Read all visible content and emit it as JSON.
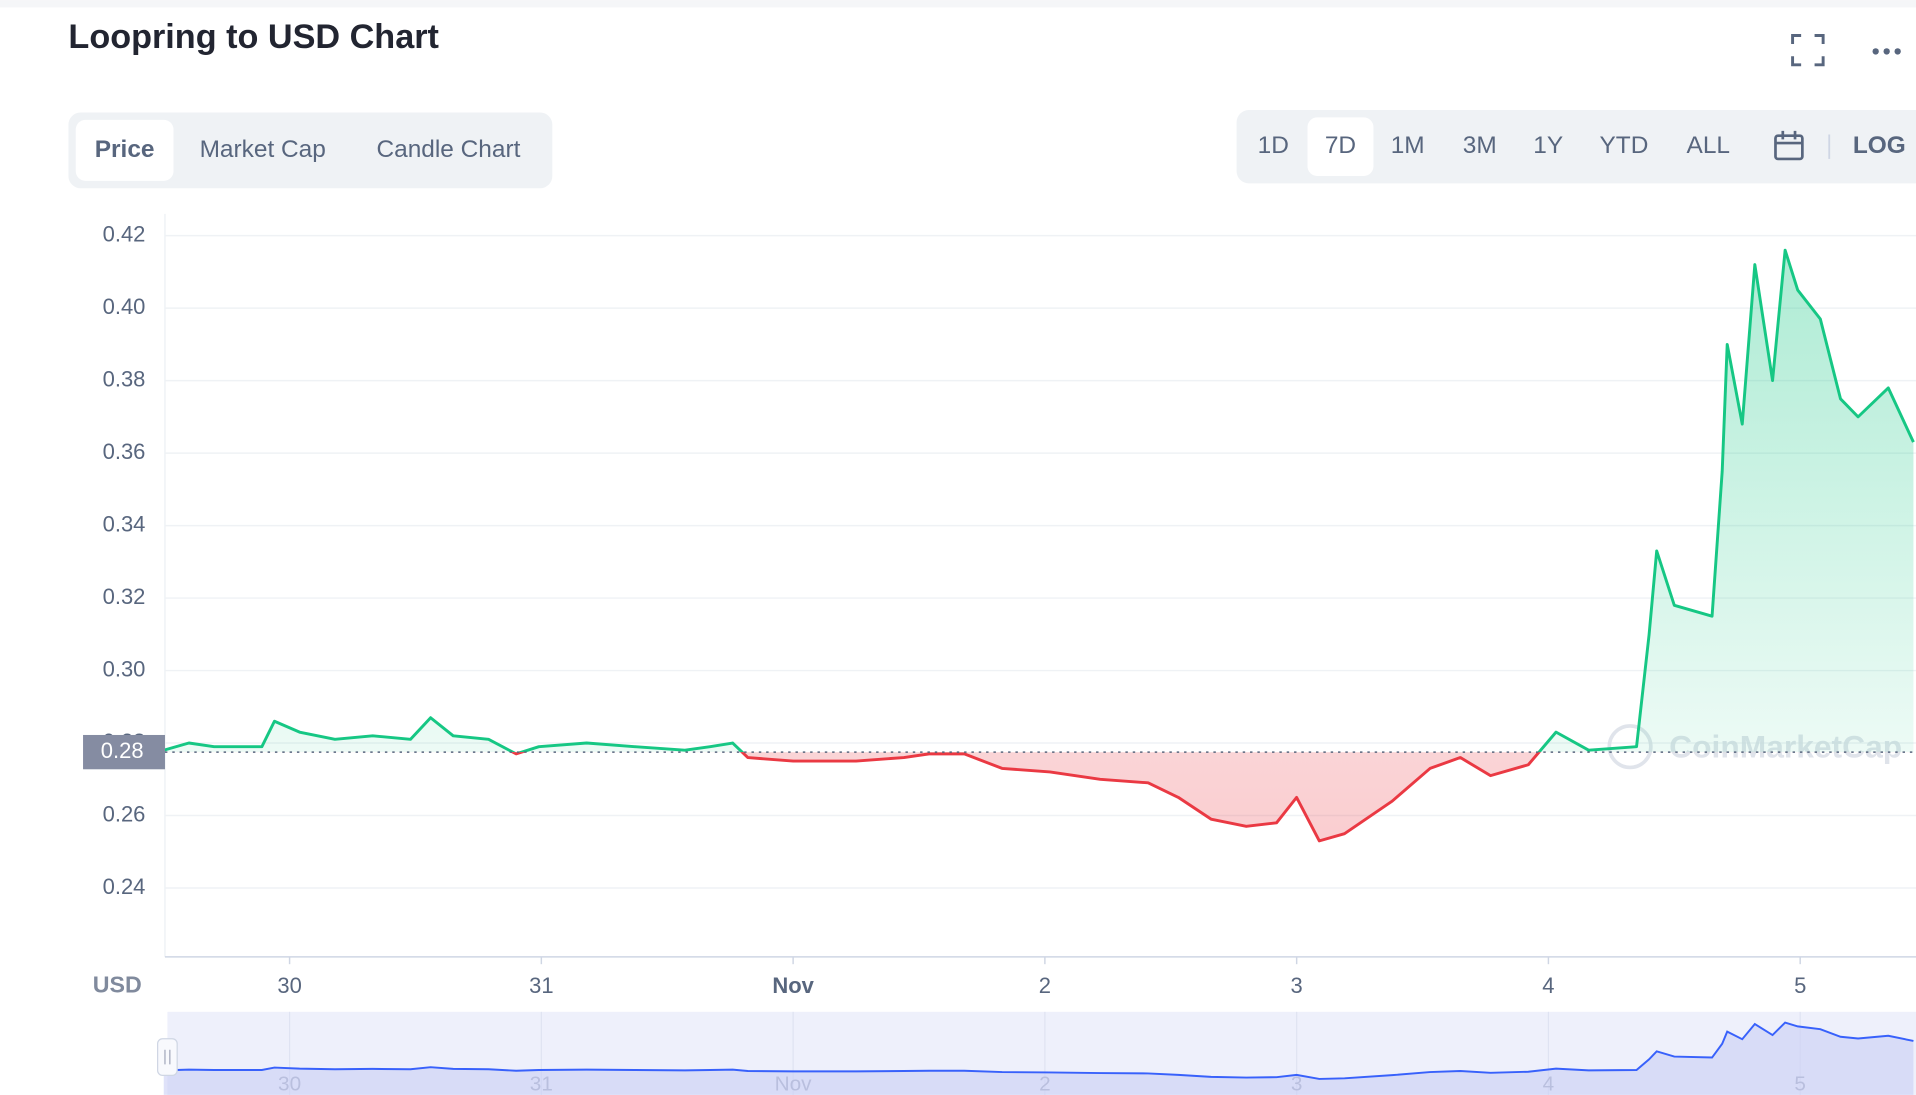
{
  "header": {
    "title": "Loopring to USD Chart"
  },
  "tabs": [
    "Price",
    "Market Cap",
    "Candle Chart"
  ],
  "active_tab": 0,
  "ranges": [
    "1D",
    "7D",
    "1M",
    "3M",
    "1Y",
    "YTD",
    "ALL"
  ],
  "active_range": 1,
  "log_button": "LOG",
  "watermark": "CoinMarketCap",
  "chart_data": {
    "type": "line",
    "currency_label": "USD",
    "x": [
      29.5,
      29.6,
      29.7,
      29.8,
      29.89,
      29.94,
      30.04,
      30.18,
      30.33,
      30.48,
      30.56,
      30.65,
      30.79,
      30.9,
      30.99,
      31.18,
      31.37,
      31.57,
      31.67,
      31.76,
      31.82,
      32.0,
      32.25,
      32.44,
      32.54,
      32.68,
      32.83,
      33.02,
      33.22,
      33.41,
      33.53,
      33.66,
      33.8,
      33.92,
      34.0,
      34.09,
      34.19,
      34.38,
      34.53,
      34.65,
      34.77,
      34.92,
      35.03,
      35.16,
      35.35,
      35.4,
      35.43,
      35.5,
      35.65,
      35.69,
      35.71,
      35.77,
      35.82,
      35.89,
      35.94,
      35.99,
      36.08,
      36.16,
      36.23,
      36.35,
      36.45
    ],
    "values": [
      0.278,
      0.28,
      0.279,
      0.279,
      0.279,
      0.286,
      0.283,
      0.281,
      0.282,
      0.281,
      0.287,
      0.282,
      0.281,
      0.277,
      0.279,
      0.28,
      0.279,
      0.278,
      0.279,
      0.28,
      0.276,
      0.275,
      0.275,
      0.276,
      0.277,
      0.277,
      0.273,
      0.272,
      0.27,
      0.269,
      0.265,
      0.259,
      0.257,
      0.258,
      0.265,
      0.253,
      0.255,
      0.264,
      0.273,
      0.276,
      0.271,
      0.274,
      0.283,
      0.278,
      0.279,
      0.31,
      0.333,
      0.318,
      0.315,
      0.355,
      0.39,
      0.368,
      0.412,
      0.38,
      0.416,
      0.405,
      0.397,
      0.375,
      0.37,
      0.378,
      0.363
    ],
    "color_up": "#16c784",
    "color_down": "#ea3943",
    "baseline": {
      "value": 0.2775,
      "label": "0.28"
    },
    "xlim": [
      29.505,
      36.46
    ],
    "xticks": [
      {
        "value": 30,
        "label": "30"
      },
      {
        "value": 31,
        "label": "31"
      },
      {
        "value": 32,
        "label": "Nov"
      },
      {
        "value": 33,
        "label": "2"
      },
      {
        "value": 34,
        "label": "3"
      },
      {
        "value": 35,
        "label": "4"
      },
      {
        "value": 36,
        "label": "5"
      }
    ],
    "ylim": [
      0.221,
      0.426
    ],
    "yticks": [
      {
        "value": 0.24,
        "label": "0.24"
      },
      {
        "value": 0.26,
        "label": "0.26"
      },
      {
        "value": 0.28,
        "label": "0.28"
      },
      {
        "value": 0.3,
        "label": "0.30"
      },
      {
        "value": 0.32,
        "label": "0.32"
      },
      {
        "value": 0.34,
        "label": "0.34"
      },
      {
        "value": 0.36,
        "label": "0.36"
      },
      {
        "value": 0.38,
        "label": "0.38"
      },
      {
        "value": 0.4,
        "label": "0.40"
      },
      {
        "value": 0.42,
        "label": "0.42"
      }
    ],
    "grid": true
  }
}
